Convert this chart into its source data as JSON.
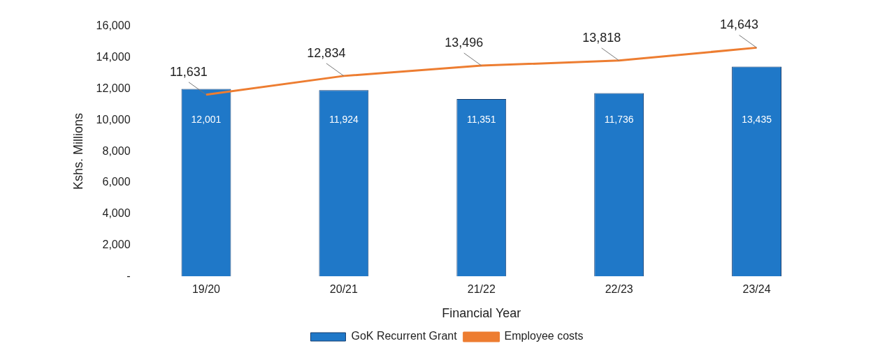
{
  "chart_data": {
    "type": "bar",
    "xlabel": "Financial Year",
    "ylabel": "Kshs. Millions",
    "categories": [
      "19/20",
      "20/21",
      "21/22",
      "22/23",
      "23/24"
    ],
    "series": [
      {
        "name": "GoK Recurrent Grant",
        "color": "#1f78c8",
        "values": [
          12001,
          11924,
          11351,
          11736,
          13435
        ],
        "value_labels": [
          "12,001",
          "11,924",
          "11,351",
          "11,736",
          "13,435"
        ]
      },
      {
        "name": "Employee costs",
        "type": "line",
        "color": "#ed7d31",
        "values": [
          11631,
          12834,
          13496,
          13818,
          14643
        ],
        "value_labels": [
          "11,631",
          "12,834",
          "13,496",
          "13,818",
          "14,643"
        ]
      }
    ],
    "ylim": [
      0,
      16000
    ],
    "yticks": [
      {
        "value": 0,
        "label": "-"
      },
      {
        "value": 2000,
        "label": "2,000"
      },
      {
        "value": 4000,
        "label": "4,000"
      },
      {
        "value": 6000,
        "label": "6,000"
      },
      {
        "value": 8000,
        "label": "8,000"
      },
      {
        "value": 10000,
        "label": "10,000"
      },
      {
        "value": 12000,
        "label": "12,000"
      },
      {
        "value": 14000,
        "label": "14,000"
      },
      {
        "value": 16000,
        "label": "16,000"
      }
    ],
    "grid": false,
    "legend": "bottom",
    "marker": "none"
  }
}
